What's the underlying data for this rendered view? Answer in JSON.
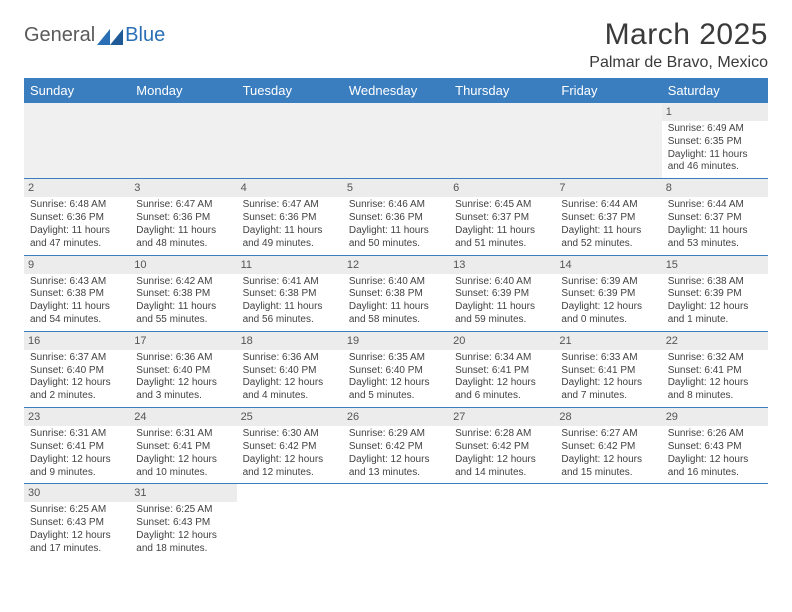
{
  "logo": {
    "part1": "General",
    "part2": "Blue"
  },
  "title": "March 2025",
  "location": "Palmar de Bravo, Mexico",
  "colors": {
    "header_bg": "#3a7ec0",
    "header_text": "#ffffff",
    "daynum_bg": "#ececec",
    "border": "#3a7ec0",
    "logo_gray": "#5a5a5a",
    "logo_blue": "#2a6fb5"
  },
  "weekdays": [
    "Sunday",
    "Monday",
    "Tuesday",
    "Wednesday",
    "Thursday",
    "Friday",
    "Saturday"
  ],
  "weeks": [
    [
      null,
      null,
      null,
      null,
      null,
      null,
      {
        "d": "1",
        "sr": "Sunrise: 6:49 AM",
        "ss": "Sunset: 6:35 PM",
        "dl1": "Daylight: 11 hours",
        "dl2": "and 46 minutes."
      }
    ],
    [
      {
        "d": "2",
        "sr": "Sunrise: 6:48 AM",
        "ss": "Sunset: 6:36 PM",
        "dl1": "Daylight: 11 hours",
        "dl2": "and 47 minutes."
      },
      {
        "d": "3",
        "sr": "Sunrise: 6:47 AM",
        "ss": "Sunset: 6:36 PM",
        "dl1": "Daylight: 11 hours",
        "dl2": "and 48 minutes."
      },
      {
        "d": "4",
        "sr": "Sunrise: 6:47 AM",
        "ss": "Sunset: 6:36 PM",
        "dl1": "Daylight: 11 hours",
        "dl2": "and 49 minutes."
      },
      {
        "d": "5",
        "sr": "Sunrise: 6:46 AM",
        "ss": "Sunset: 6:36 PM",
        "dl1": "Daylight: 11 hours",
        "dl2": "and 50 minutes."
      },
      {
        "d": "6",
        "sr": "Sunrise: 6:45 AM",
        "ss": "Sunset: 6:37 PM",
        "dl1": "Daylight: 11 hours",
        "dl2": "and 51 minutes."
      },
      {
        "d": "7",
        "sr": "Sunrise: 6:44 AM",
        "ss": "Sunset: 6:37 PM",
        "dl1": "Daylight: 11 hours",
        "dl2": "and 52 minutes."
      },
      {
        "d": "8",
        "sr": "Sunrise: 6:44 AM",
        "ss": "Sunset: 6:37 PM",
        "dl1": "Daylight: 11 hours",
        "dl2": "and 53 minutes."
      }
    ],
    [
      {
        "d": "9",
        "sr": "Sunrise: 6:43 AM",
        "ss": "Sunset: 6:38 PM",
        "dl1": "Daylight: 11 hours",
        "dl2": "and 54 minutes."
      },
      {
        "d": "10",
        "sr": "Sunrise: 6:42 AM",
        "ss": "Sunset: 6:38 PM",
        "dl1": "Daylight: 11 hours",
        "dl2": "and 55 minutes."
      },
      {
        "d": "11",
        "sr": "Sunrise: 6:41 AM",
        "ss": "Sunset: 6:38 PM",
        "dl1": "Daylight: 11 hours",
        "dl2": "and 56 minutes."
      },
      {
        "d": "12",
        "sr": "Sunrise: 6:40 AM",
        "ss": "Sunset: 6:38 PM",
        "dl1": "Daylight: 11 hours",
        "dl2": "and 58 minutes."
      },
      {
        "d": "13",
        "sr": "Sunrise: 6:40 AM",
        "ss": "Sunset: 6:39 PM",
        "dl1": "Daylight: 11 hours",
        "dl2": "and 59 minutes."
      },
      {
        "d": "14",
        "sr": "Sunrise: 6:39 AM",
        "ss": "Sunset: 6:39 PM",
        "dl1": "Daylight: 12 hours",
        "dl2": "and 0 minutes."
      },
      {
        "d": "15",
        "sr": "Sunrise: 6:38 AM",
        "ss": "Sunset: 6:39 PM",
        "dl1": "Daylight: 12 hours",
        "dl2": "and 1 minute."
      }
    ],
    [
      {
        "d": "16",
        "sr": "Sunrise: 6:37 AM",
        "ss": "Sunset: 6:40 PM",
        "dl1": "Daylight: 12 hours",
        "dl2": "and 2 minutes."
      },
      {
        "d": "17",
        "sr": "Sunrise: 6:36 AM",
        "ss": "Sunset: 6:40 PM",
        "dl1": "Daylight: 12 hours",
        "dl2": "and 3 minutes."
      },
      {
        "d": "18",
        "sr": "Sunrise: 6:36 AM",
        "ss": "Sunset: 6:40 PM",
        "dl1": "Daylight: 12 hours",
        "dl2": "and 4 minutes."
      },
      {
        "d": "19",
        "sr": "Sunrise: 6:35 AM",
        "ss": "Sunset: 6:40 PM",
        "dl1": "Daylight: 12 hours",
        "dl2": "and 5 minutes."
      },
      {
        "d": "20",
        "sr": "Sunrise: 6:34 AM",
        "ss": "Sunset: 6:41 PM",
        "dl1": "Daylight: 12 hours",
        "dl2": "and 6 minutes."
      },
      {
        "d": "21",
        "sr": "Sunrise: 6:33 AM",
        "ss": "Sunset: 6:41 PM",
        "dl1": "Daylight: 12 hours",
        "dl2": "and 7 minutes."
      },
      {
        "d": "22",
        "sr": "Sunrise: 6:32 AM",
        "ss": "Sunset: 6:41 PM",
        "dl1": "Daylight: 12 hours",
        "dl2": "and 8 minutes."
      }
    ],
    [
      {
        "d": "23",
        "sr": "Sunrise: 6:31 AM",
        "ss": "Sunset: 6:41 PM",
        "dl1": "Daylight: 12 hours",
        "dl2": "and 9 minutes."
      },
      {
        "d": "24",
        "sr": "Sunrise: 6:31 AM",
        "ss": "Sunset: 6:41 PM",
        "dl1": "Daylight: 12 hours",
        "dl2": "and 10 minutes."
      },
      {
        "d": "25",
        "sr": "Sunrise: 6:30 AM",
        "ss": "Sunset: 6:42 PM",
        "dl1": "Daylight: 12 hours",
        "dl2": "and 12 minutes."
      },
      {
        "d": "26",
        "sr": "Sunrise: 6:29 AM",
        "ss": "Sunset: 6:42 PM",
        "dl1": "Daylight: 12 hours",
        "dl2": "and 13 minutes."
      },
      {
        "d": "27",
        "sr": "Sunrise: 6:28 AM",
        "ss": "Sunset: 6:42 PM",
        "dl1": "Daylight: 12 hours",
        "dl2": "and 14 minutes."
      },
      {
        "d": "28",
        "sr": "Sunrise: 6:27 AM",
        "ss": "Sunset: 6:42 PM",
        "dl1": "Daylight: 12 hours",
        "dl2": "and 15 minutes."
      },
      {
        "d": "29",
        "sr": "Sunrise: 6:26 AM",
        "ss": "Sunset: 6:43 PM",
        "dl1": "Daylight: 12 hours",
        "dl2": "and 16 minutes."
      }
    ],
    [
      {
        "d": "30",
        "sr": "Sunrise: 6:25 AM",
        "ss": "Sunset: 6:43 PM",
        "dl1": "Daylight: 12 hours",
        "dl2": "and 17 minutes."
      },
      {
        "d": "31",
        "sr": "Sunrise: 6:25 AM",
        "ss": "Sunset: 6:43 PM",
        "dl1": "Daylight: 12 hours",
        "dl2": "and 18 minutes."
      },
      null,
      null,
      null,
      null,
      null
    ]
  ]
}
